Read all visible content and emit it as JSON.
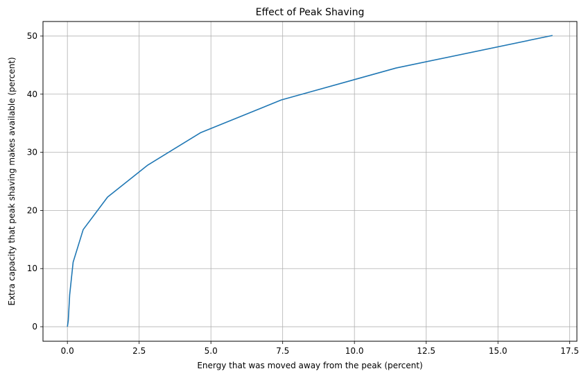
{
  "chart_data": {
    "type": "line",
    "title": "Effect of Peak Shaving",
    "xlabel": "Energy that was moved away from the peak (percent)",
    "ylabel": "Extra capacity that peak shaving makes available (percent)",
    "xlim": [
      -0.85,
      17.75
    ],
    "ylim": [
      -2.5,
      52.5
    ],
    "xticks": [
      0.0,
      2.5,
      5.0,
      7.5,
      10.0,
      12.5,
      15.0,
      17.5
    ],
    "xtick_labels": [
      "0.0",
      "2.5",
      "5.0",
      "7.5",
      "10.0",
      "12.5",
      "15.0",
      "17.5"
    ],
    "yticks": [
      0,
      10,
      20,
      30,
      40,
      50
    ],
    "ytick_labels": [
      "0",
      "10",
      "20",
      "30",
      "40",
      "50"
    ],
    "grid": true,
    "line_color": "#1f77b4",
    "grid_color": "#b0b0b0",
    "series": [
      {
        "x": [
          0.0,
          0.03,
          0.08,
          0.2,
          0.55,
          1.4,
          2.8,
          4.65,
          7.45,
          11.45,
          16.9
        ],
        "y": [
          0.0,
          1.0,
          5.5,
          11.1,
          16.7,
          22.3,
          27.8,
          33.4,
          39.0,
          44.5,
          50.1
        ]
      }
    ]
  }
}
